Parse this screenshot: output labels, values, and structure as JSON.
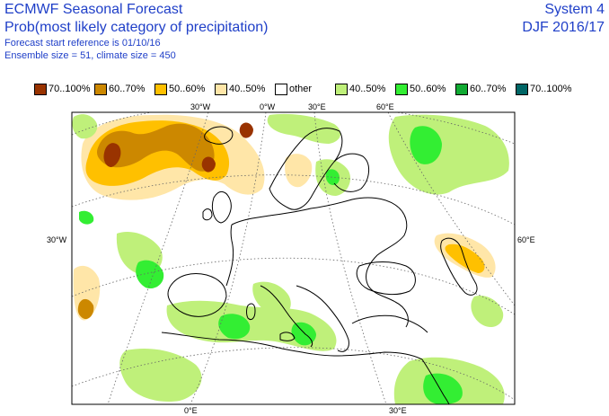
{
  "header": {
    "title": "ECMWF Seasonal Forecast",
    "subtitle": "Prob(most likely category of precipitation)",
    "start_ref": "Forecast start reference is 01/10/16",
    "ensemble": "Ensemble size = 51, climate size = 450",
    "system": "System 4",
    "season": "DJF 2016/17"
  },
  "legend": [
    {
      "label": "70..100%",
      "color": "#993300"
    },
    {
      "label": "60..70%",
      "color": "#cc8800"
    },
    {
      "label": "50..60%",
      "color": "#ffc000"
    },
    {
      "label": "40..50%",
      "color": "#ffe6a8"
    },
    {
      "label": "other",
      "color": "#ffffff"
    },
    {
      "label": "40..50%",
      "color": "#bff07a"
    },
    {
      "label": "50..60%",
      "color": "#33ee33"
    },
    {
      "label": "60..70%",
      "color": "#11aa33"
    },
    {
      "label": "70..100%",
      "color": "#006666"
    }
  ],
  "axes": {
    "top": [
      "30°W",
      "0°W",
      "30°E",
      "60°E"
    ],
    "left": "30°W",
    "right": "60°E",
    "bottom": [
      "0°E",
      "30°E"
    ]
  }
}
